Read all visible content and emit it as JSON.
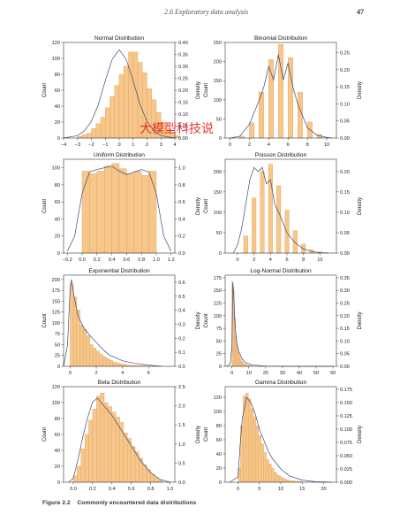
{
  "running_head": {
    "section": "2.6   Exploratory data analysis",
    "page": "47"
  },
  "caption": {
    "label": "Figure 2.2",
    "text": "Commonly encountered data distributions"
  },
  "watermark": {
    "text": "大模型科技说"
  },
  "colors": {
    "bar_fill": "#f6c68a",
    "bar_edge": "#e3a25a",
    "density_line": "#3a4a7a",
    "axis": "#333333"
  },
  "chart_data": [
    {
      "type": "bar",
      "title": "Normal Distribution",
      "ylabel": "Count",
      "y2label": "Density",
      "xlim": [
        -4,
        4
      ],
      "ylim": [
        0,
        120
      ],
      "y2lim": [
        0,
        0.4
      ],
      "xticks": [
        "−4",
        "−3",
        "−2",
        "−1",
        "0",
        "1",
        "2",
        "3",
        "4"
      ],
      "xtick_values": [
        -4,
        -3,
        -2,
        -1,
        0,
        1,
        2,
        3,
        4
      ],
      "yticks": [
        0,
        20,
        40,
        60,
        80,
        100,
        120
      ],
      "y2ticks": [
        "0.00",
        "0.05",
        "0.10",
        "0.15",
        "0.20",
        "0.25",
        "0.30",
        "0.35",
        "0.40"
      ],
      "y2tick_values": [
        0,
        0.05,
        0.1,
        0.15,
        0.2,
        0.25,
        0.3,
        0.35,
        0.4
      ],
      "bins": {
        "start": -3,
        "width": 0.3333,
        "counts": [
          2,
          4,
          6,
          12,
          18,
          26,
          38,
          52,
          66,
          80,
          90,
          108,
          108,
          95,
          82,
          62,
          48,
          32,
          20,
          12,
          6,
          3
        ]
      },
      "density": {
        "x": [
          -4,
          -3,
          -2.5,
          -2,
          -1.5,
          -1,
          -0.5,
          0,
          0.5,
          1,
          1.5,
          2,
          2.5,
          3,
          4
        ],
        "y": [
          0,
          0.01,
          0.03,
          0.07,
          0.14,
          0.24,
          0.33,
          0.37,
          0.33,
          0.24,
          0.14,
          0.07,
          0.03,
          0.01,
          0
        ]
      }
    },
    {
      "type": "bar",
      "title": "Binomial Distribution",
      "ylabel": "Count",
      "y2label": "Density",
      "xlim": [
        -0.5,
        11
      ],
      "ylim": [
        0,
        250
      ],
      "y2lim": [
        0,
        0.28
      ],
      "xticks": [
        "0",
        "2",
        "4",
        "6",
        "8",
        "10"
      ],
      "xtick_values": [
        0,
        2,
        4,
        6,
        8,
        10
      ],
      "yticks": [
        0,
        50,
        100,
        150,
        200,
        250
      ],
      "y2ticks": [
        "0.00",
        "0.05",
        "0.10",
        "0.15",
        "0.20",
        "0.25"
      ],
      "y2tick_values": [
        0,
        0.05,
        0.1,
        0.15,
        0.2,
        0.25
      ],
      "bins": {
        "start": 1,
        "width": 0.5,
        "counts": [
          5,
          0,
          40,
          0,
          120,
          0,
          205,
          0,
          245,
          0,
          210,
          0,
          120,
          0,
          42,
          0,
          10
        ]
      },
      "density": {
        "x": [
          0,
          1,
          2,
          3,
          3.5,
          4,
          4.5,
          5,
          5.5,
          6,
          6.5,
          7,
          8,
          9,
          10,
          10.5
        ],
        "y": [
          0,
          0.005,
          0.04,
          0.11,
          0.15,
          0.21,
          0.17,
          0.245,
          0.17,
          0.22,
          0.15,
          0.1,
          0.03,
          0.008,
          0.002,
          0
        ]
      }
    },
    {
      "type": "bar",
      "title": "Uniform Distribution",
      "ylabel": "Count",
      "y2label": "Density",
      "xlim": [
        -0.25,
        1.25
      ],
      "ylim": [
        0,
        110
      ],
      "y2lim": [
        0,
        1.1
      ],
      "xticks": [
        "−0.2",
        "0.0",
        "0.2",
        "0.4",
        "0.6",
        "0.8",
        "1.0",
        "1.2"
      ],
      "xtick_values": [
        -0.2,
        0,
        0.2,
        0.4,
        0.6,
        0.8,
        1.0,
        1.2
      ],
      "yticks": [
        0,
        20,
        40,
        60,
        80,
        100
      ],
      "y2ticks": [
        "0.0",
        "0.2",
        "0.4",
        "0.6",
        "0.8",
        "1.0"
      ],
      "y2tick_values": [
        0,
        0.2,
        0.4,
        0.6,
        0.8,
        1.0
      ],
      "bins": {
        "start": 0,
        "width": 0.1,
        "counts": [
          96,
          93,
          96,
          102,
          105,
          99,
          93,
          96,
          91,
          96
        ]
      },
      "density": {
        "x": [
          -0.2,
          -0.1,
          0,
          0.1,
          0.2,
          0.3,
          0.4,
          0.5,
          0.6,
          0.7,
          0.8,
          0.9,
          1.0,
          1.1,
          1.2
        ],
        "y": [
          0.02,
          0.2,
          0.7,
          0.95,
          0.98,
          1.0,
          1.02,
          0.96,
          0.92,
          0.95,
          0.98,
          0.95,
          0.7,
          0.2,
          0.02
        ]
      }
    },
    {
      "type": "bar",
      "title": "Poisson Distribution",
      "ylabel": "Count",
      "y2label": "Density",
      "xlim": [
        -1.5,
        12
      ],
      "ylim": [
        0,
        230
      ],
      "y2lim": [
        0,
        0.23
      ],
      "xticks": [
        "0",
        "2",
        "4",
        "6",
        "8",
        "10"
      ],
      "xtick_values": [
        0,
        2,
        4,
        6,
        8,
        10
      ],
      "yticks": [
        0,
        50,
        100,
        150,
        200
      ],
      "y2ticks": [
        "0.00",
        "0.05",
        "0.10",
        "0.15",
        "0.20"
      ],
      "y2tick_values": [
        0,
        0.05,
        0.1,
        0.15,
        0.2
      ],
      "bins": {
        "start": 0.75,
        "width": 0.5,
        "counts": [
          42,
          0,
          135,
          0,
          200,
          0,
          218,
          0,
          165,
          0,
          105,
          0,
          55,
          0,
          22,
          0,
          8,
          0,
          3
        ]
      },
      "density": {
        "x": [
          -0.5,
          0,
          0.5,
          1,
          1.5,
          2,
          2.5,
          3,
          3.5,
          4,
          4.5,
          5,
          6,
          7,
          8,
          9,
          10,
          11
        ],
        "y": [
          0,
          0.02,
          0.06,
          0.12,
          0.18,
          0.21,
          0.2,
          0.21,
          0.17,
          0.18,
          0.12,
          0.1,
          0.05,
          0.025,
          0.01,
          0.004,
          0.001,
          0
        ]
      }
    },
    {
      "type": "bar",
      "title": "Exponential Distribution",
      "ylabel": "Count",
      "y2label": "Density",
      "xlim": [
        -0.5,
        8
      ],
      "ylim": [
        0,
        210
      ],
      "y2lim": [
        0,
        0.65
      ],
      "xticks": [
        "0",
        "2",
        "4",
        "6"
      ],
      "xtick_values": [
        0,
        2,
        4,
        6
      ],
      "yticks": [
        0,
        25,
        50,
        75,
        100,
        125,
        150,
        175,
        200
      ],
      "y2ticks": [
        "0.0",
        "0.1",
        "0.2",
        "0.3",
        "0.4",
        "0.5",
        "0.6"
      ],
      "y2tick_values": [
        0,
        0.1,
        0.2,
        0.3,
        0.4,
        0.5,
        0.6
      ],
      "bins": {
        "start": 0,
        "width": 0.25,
        "counts": [
          190,
          160,
          130,
          95,
          85,
          70,
          50,
          42,
          35,
          28,
          22,
          18,
          14,
          10,
          8,
          6,
          4,
          3,
          2,
          2,
          1,
          1,
          1
        ]
      },
      "density": {
        "x": [
          -0.5,
          -0.2,
          0,
          0.1,
          0.3,
          0.6,
          1,
          1.5,
          2,
          2.5,
          3,
          4,
          5,
          6,
          7
        ],
        "y": [
          0,
          0.15,
          0.55,
          0.62,
          0.5,
          0.36,
          0.28,
          0.22,
          0.17,
          0.12,
          0.08,
          0.04,
          0.02,
          0.008,
          0
        ]
      }
    },
    {
      "type": "bar",
      "title": "Log-Normal Distribution",
      "ylabel": "Count",
      "y2label": "Density",
      "xlim": [
        -4,
        62
      ],
      "ylim": [
        0,
        180
      ],
      "y2lim": [
        0,
        0.36
      ],
      "xticks": [
        "0",
        "10",
        "20",
        "30",
        "40",
        "50",
        "60"
      ],
      "xtick_values": [
        0,
        10,
        20,
        30,
        40,
        50,
        60
      ],
      "yticks": [
        0,
        25,
        50,
        75,
        100,
        125,
        150,
        175
      ],
      "y2ticks": [
        "0.00",
        "0.05",
        "0.10",
        "0.15",
        "0.20",
        "0.25",
        "0.30",
        "0.35"
      ],
      "y2tick_values": [
        0,
        0.05,
        0.1,
        0.15,
        0.2,
        0.25,
        0.3,
        0.35
      ],
      "bins": {
        "start": 0,
        "width": 0.7,
        "counts": [
          168,
          150,
          95,
          60,
          42,
          28,
          20,
          14,
          10,
          7,
          5,
          4,
          3,
          2,
          2,
          1,
          1
        ]
      },
      "density": {
        "x": [
          -3,
          -1,
          0,
          0.5,
          1,
          1.5,
          2,
          3,
          4,
          6,
          8,
          12,
          20,
          40,
          60
        ],
        "y": [
          0,
          0.01,
          0.08,
          0.33,
          0.3,
          0.22,
          0.15,
          0.09,
          0.06,
          0.03,
          0.015,
          0.005,
          0.001,
          0,
          0
        ]
      }
    },
    {
      "type": "bar",
      "title": "Beta Distribution",
      "ylabel": "Count",
      "y2label": "Density",
      "xlim": [
        -0.1,
        1.05
      ],
      "ylim": [
        0,
        120
      ],
      "y2lim": [
        0,
        2.5
      ],
      "xticks": [
        "0.0",
        "0.2",
        "0.4",
        "0.6",
        "0.8",
        "1.0"
      ],
      "xtick_values": [
        0,
        0.2,
        0.4,
        0.6,
        0.8,
        1.0
      ],
      "yticks": [
        0,
        20,
        40,
        60,
        80,
        100,
        120
      ],
      "y2ticks": [
        "0.0",
        "0.5",
        "1.0",
        "1.5",
        "2.0",
        "2.5"
      ],
      "y2tick_values": [
        0,
        0.5,
        1.0,
        1.5,
        2.0,
        2.5
      ],
      "bins": {
        "start": 0,
        "width": 0.04,
        "counts": [
          8,
          20,
          42,
          60,
          78,
          92,
          108,
          112,
          100,
          95,
          88,
          82,
          75,
          62,
          55,
          45,
          38,
          30,
          22,
          16,
          10,
          6,
          3
        ]
      },
      "density": {
        "x": [
          -0.05,
          0,
          0.05,
          0.1,
          0.15,
          0.2,
          0.25,
          0.3,
          0.4,
          0.5,
          0.6,
          0.7,
          0.8,
          0.9,
          1.0
        ],
        "y": [
          0,
          0.1,
          0.6,
          1.2,
          1.7,
          2.1,
          2.2,
          2.05,
          1.75,
          1.35,
          0.95,
          0.55,
          0.25,
          0.07,
          0
        ]
      }
    },
    {
      "type": "bar",
      "title": "Gamma Distribution",
      "ylabel": "Count",
      "y2label": "Density",
      "xlim": [
        -3,
        23
      ],
      "ylim": [
        0,
        135
      ],
      "y2lim": [
        0,
        0.18
      ],
      "xticks": [
        "0",
        "5",
        "10",
        "15",
        "20"
      ],
      "xtick_values": [
        0,
        5,
        10,
        15,
        20
      ],
      "yticks": [
        0,
        20,
        40,
        60,
        80,
        100,
        120
      ],
      "y2ticks": [
        "0.000",
        "0.025",
        "0.050",
        "0.075",
        "0.100",
        "0.125",
        "0.150",
        "0.175"
      ],
      "y2tick_values": [
        0,
        0.025,
        0.05,
        0.075,
        0.1,
        0.125,
        0.15,
        0.175
      ],
      "bins": {
        "start": 0,
        "width": 0.6,
        "counts": [
          20,
          80,
          122,
          126,
          118,
          104,
          92,
          80,
          66,
          54,
          42,
          32,
          26,
          20,
          14,
          10,
          8,
          6,
          4,
          3,
          2,
          2,
          1,
          1,
          1
        ]
      },
      "density": {
        "x": [
          -2,
          0,
          0.5,
          1,
          2,
          3,
          4,
          5,
          6,
          7,
          8,
          10,
          12,
          15,
          18,
          22
        ],
        "y": [
          0,
          0.01,
          0.07,
          0.12,
          0.16,
          0.15,
          0.13,
          0.1,
          0.08,
          0.06,
          0.045,
          0.025,
          0.012,
          0.004,
          0.001,
          0
        ]
      }
    }
  ]
}
